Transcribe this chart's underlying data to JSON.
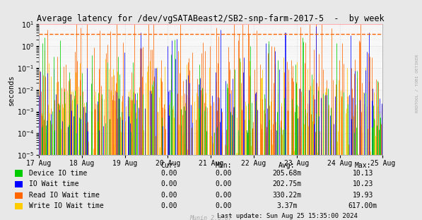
{
  "title": "Average latency for /dev/vgSATABeast2/SB2-snp-farm-2017-5  -  by week",
  "ylabel": "seconds",
  "right_label": "RRDTOOL / TOBI OETIKER",
  "ylim_min": 1e-05,
  "ylim_max": 10.0,
  "dashed_line_y": 3.5,
  "bg_color": "#e8e8e8",
  "plot_bg_color": "#f8f8f8",
  "grid_color": "#cccccc",
  "colors": {
    "device_io": "#00cc00",
    "io_wait": "#0000ff",
    "read_io_wait": "#ff6600",
    "write_io_wait": "#ffcc00"
  },
  "legend": [
    {
      "label": "Device IO time",
      "color": "#00cc00"
    },
    {
      "label": "IO Wait time",
      "color": "#0000ff"
    },
    {
      "label": "Read IO Wait time",
      "color": "#ff6600"
    },
    {
      "label": "Write IO Wait time",
      "color": "#ffcc00"
    }
  ],
  "legend_table": {
    "headers": [
      "Cur:",
      "Min:",
      "Avg:",
      "Max:"
    ],
    "rows": [
      [
        "0.00",
        "0.00",
        "205.68m",
        "10.13"
      ],
      [
        "0.00",
        "0.00",
        "202.75m",
        "10.23"
      ],
      [
        "0.00",
        "0.00",
        "330.22m",
        "19.93"
      ],
      [
        "0.00",
        "0.00",
        "3.37m",
        "617.00m"
      ]
    ]
  },
  "last_update": "Last update: Sun Aug 25 15:35:00 2024",
  "munin_version": "Munin 2.0.67",
  "x_ticks": [
    "17 Aug",
    "18 Aug",
    "19 Aug",
    "20 Aug",
    "21 Aug",
    "22 Aug",
    "23 Aug",
    "24 Aug",
    "25 Aug"
  ],
  "x_tick_pos": [
    0,
    1,
    2,
    3,
    4,
    5,
    6,
    7,
    8
  ],
  "num_points": 500,
  "seed": 42
}
